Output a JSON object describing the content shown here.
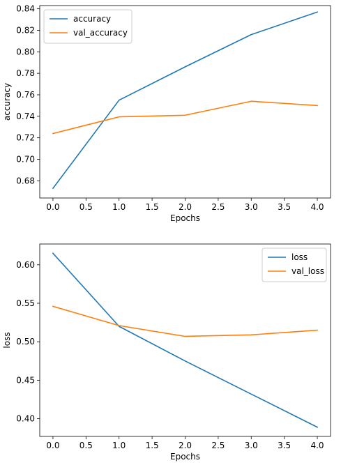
{
  "chart_data": [
    {
      "type": "line",
      "xlabel": "Epochs",
      "ylabel": "accuracy",
      "x": [
        0,
        1,
        2,
        3,
        4
      ],
      "xlim": [
        -0.2,
        4.2
      ],
      "ylim": [
        0.664,
        0.843
      ],
      "xticks": [
        "0.0",
        "0.5",
        "1.0",
        "1.5",
        "2.0",
        "2.5",
        "3.0",
        "3.5",
        "4.0"
      ],
      "yticks": [
        "0.68",
        "0.70",
        "0.72",
        "0.74",
        "0.76",
        "0.78",
        "0.80",
        "0.82",
        "0.84"
      ],
      "legend_position": "upper-left",
      "grid": false,
      "series": [
        {
          "name": "accuracy",
          "color": "#1f77b4",
          "values": [
            0.673,
            0.755,
            0.786,
            0.816,
            0.837
          ]
        },
        {
          "name": "val_accuracy",
          "color": "#ff7f0e",
          "values": [
            0.724,
            0.7395,
            0.741,
            0.754,
            0.75
          ]
        }
      ]
    },
    {
      "type": "line",
      "xlabel": "Epochs",
      "ylabel": "loss",
      "x": [
        0,
        1,
        2,
        3,
        4
      ],
      "xlim": [
        -0.2,
        4.2
      ],
      "ylim": [
        0.377,
        0.627
      ],
      "xticks": [
        "0.0",
        "0.5",
        "1.0",
        "1.5",
        "2.0",
        "2.5",
        "3.0",
        "3.5",
        "4.0"
      ],
      "yticks": [
        "0.40",
        "0.45",
        "0.50",
        "0.55",
        "0.60"
      ],
      "legend_position": "upper-right",
      "grid": false,
      "series": [
        {
          "name": "loss",
          "color": "#1f77b4",
          "values": [
            0.615,
            0.52,
            0.475,
            0.432,
            0.389
          ]
        },
        {
          "name": "val_loss",
          "color": "#ff7f0e",
          "values": [
            0.546,
            0.521,
            0.507,
            0.509,
            0.515
          ]
        }
      ]
    }
  ]
}
